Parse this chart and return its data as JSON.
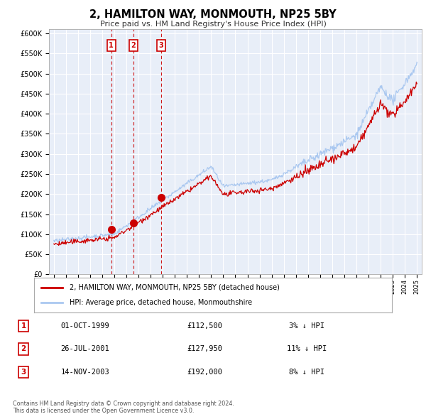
{
  "title": "2, HAMILTON WAY, MONMOUTH, NP25 5BY",
  "subtitle": "Price paid vs. HM Land Registry's House Price Index (HPI)",
  "background_color": "#ffffff",
  "chart_bg_color": "#e8eef8",
  "grid_color": "#ffffff",
  "ylim": [
    0,
    600000
  ],
  "yticks": [
    0,
    50000,
    100000,
    150000,
    200000,
    250000,
    300000,
    350000,
    400000,
    450000,
    500000,
    550000,
    600000
  ],
  "ytick_labels": [
    "£0",
    "£50K",
    "£100K",
    "£150K",
    "£200K",
    "£250K",
    "£300K",
    "£350K",
    "£400K",
    "£450K",
    "£500K",
    "£550K",
    "£600K"
  ],
  "hpi_color": "#aac8f0",
  "price_color": "#cc0000",
  "sale_marker_color": "#cc0000",
  "sale_marker_size": 7,
  "vline_color": "#cc0000",
  "legend_label_price": "2, HAMILTON WAY, MONMOUTH, NP25 5BY (detached house)",
  "legend_label_hpi": "HPI: Average price, detached house, Monmouthshire",
  "transactions": [
    {
      "date": 1999.75,
      "price": 112500,
      "label": "1"
    },
    {
      "date": 2001.56,
      "price": 127950,
      "label": "2"
    },
    {
      "date": 2003.87,
      "price": 192000,
      "label": "3"
    }
  ],
  "table_rows": [
    {
      "num": "1",
      "date": "01-OCT-1999",
      "price": "£112,500",
      "pct": "3% ↓ HPI"
    },
    {
      "num": "2",
      "date": "26-JUL-2001",
      "price": "£127,950",
      "pct": "11% ↓ HPI"
    },
    {
      "num": "3",
      "date": "14-NOV-2003",
      "price": "£192,000",
      "pct": "8% ↓ HPI"
    }
  ],
  "footnote": "Contains HM Land Registry data © Crown copyright and database right 2024.\nThis data is licensed under the Open Government Licence v3.0."
}
